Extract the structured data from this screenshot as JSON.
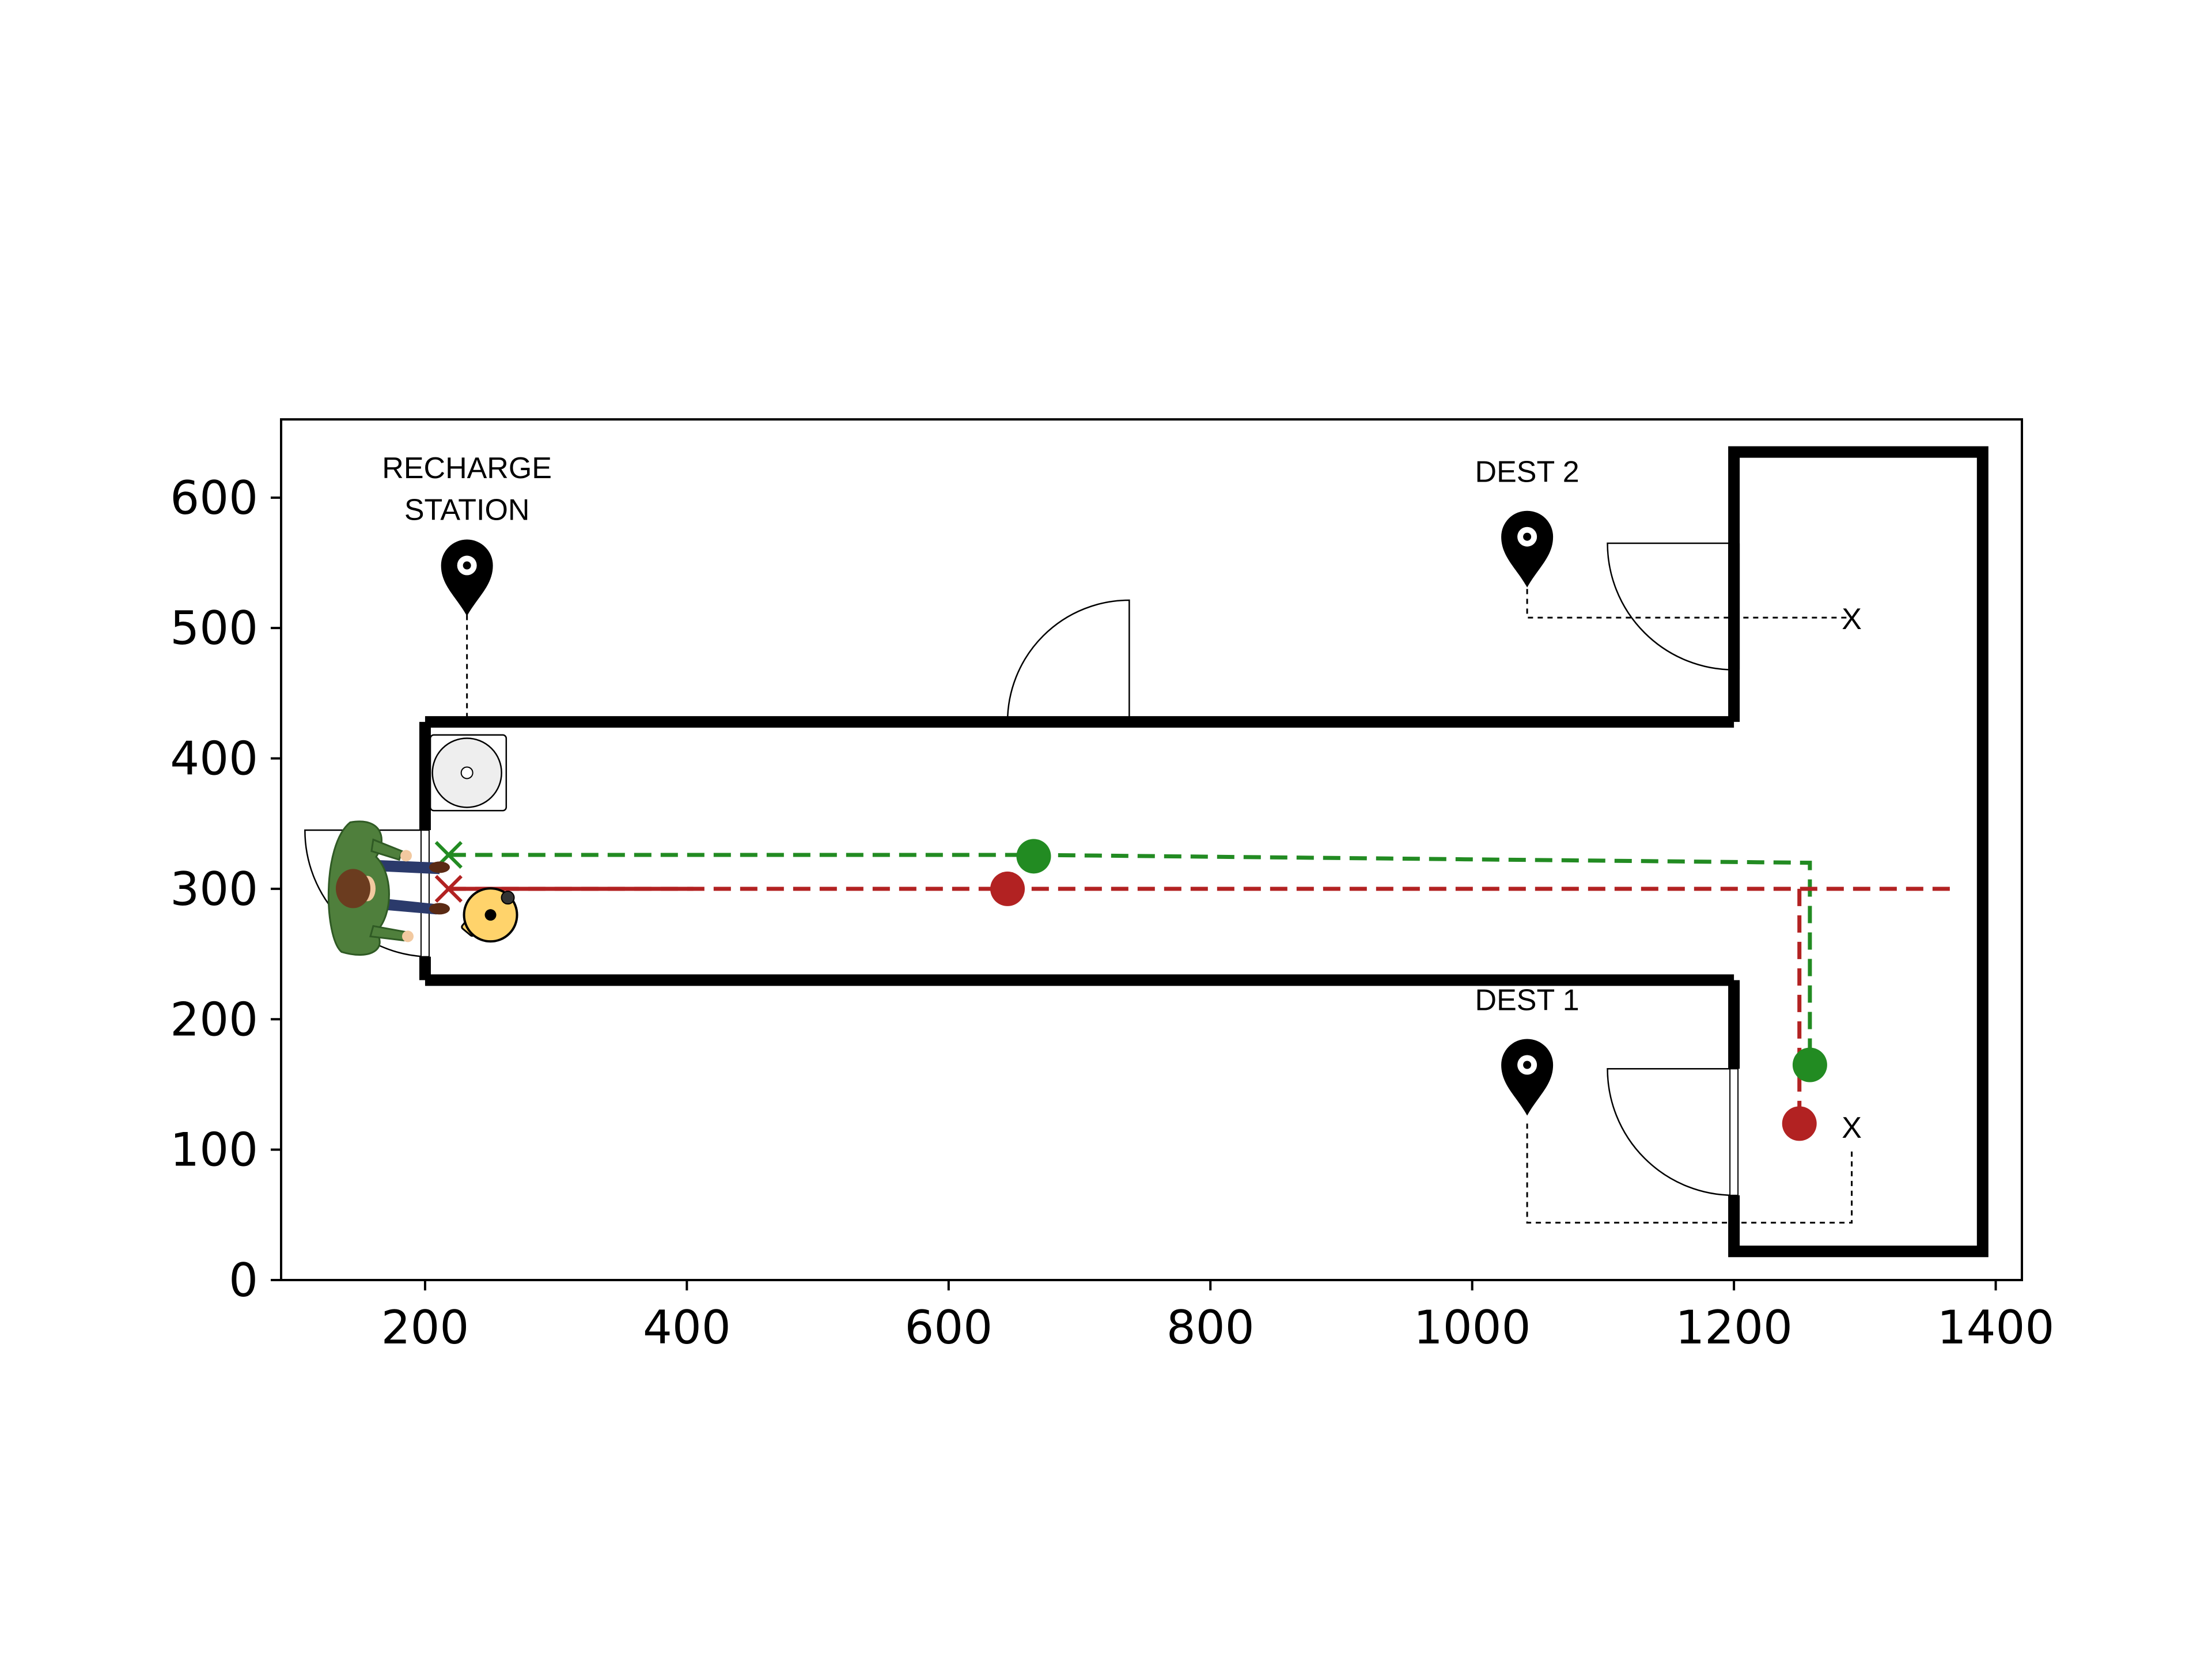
{
  "chart_data": {
    "type": "scatter",
    "title": "",
    "xlabel": "",
    "ylabel": "",
    "xlim": [
      90,
      1420
    ],
    "ylim": [
      0,
      660
    ],
    "x_ticks": [
      "200",
      "400",
      "600",
      "800",
      "1000",
      "1200",
      "1400"
    ],
    "y_ticks": [
      "0",
      "100",
      "200",
      "300",
      "400",
      "500",
      "600"
    ],
    "grid": false,
    "labels": {
      "recharge_line1": "RECHARGE",
      "recharge_line2": "STATION",
      "dest2": "DEST 2",
      "dest1": "DEST 1",
      "x_mark": "X"
    },
    "walls": {
      "corridor_top": [
        [
          200,
          428
        ],
        [
          1200,
          428
        ]
      ],
      "corridor_bottom": [
        [
          200,
          230
        ],
        [
          1200,
          230
        ]
      ],
      "corridor_left": [
        [
          200,
          230
        ],
        [
          200,
          428
        ]
      ],
      "room_outline": [
        [
          1200,
          428
        ],
        [
          1200,
          635
        ],
        [
          1390,
          635
        ],
        [
          1390,
          22
        ],
        [
          1200,
          22
        ],
        [
          1200,
          230
        ]
      ]
    },
    "landmarks": {
      "recharge_pin": [
        232,
        548
      ],
      "dest2_pin": [
        1042,
        570
      ],
      "dest1_pin": [
        1042,
        165
      ],
      "dest2_target": [
        1290,
        508
      ],
      "dest1_target": [
        1290,
        118
      ]
    },
    "series": [
      {
        "color": "#228b22",
        "start": [
          218,
          326
        ],
        "position": [
          665,
          325
        ],
        "path": [
          [
            218,
            326
          ],
          [
            665,
            326
          ],
          [
            1258,
            320
          ],
          [
            1258,
            165
          ]
        ],
        "end": [
          1258,
          165
        ]
      },
      {
        "color": "#b22222",
        "start": [
          218,
          300
        ],
        "position": [
          645,
          300
        ],
        "path": [
          [
            218,
            300
          ],
          [
            1370,
            300
          ]
        ],
        "branch": [
          [
            1250,
            300
          ],
          [
            1250,
            120
          ]
        ],
        "end": [
          1250,
          120
        ]
      }
    ],
    "robot": [
      250,
      280
    ],
    "person": [
      145,
      298
    ]
  }
}
